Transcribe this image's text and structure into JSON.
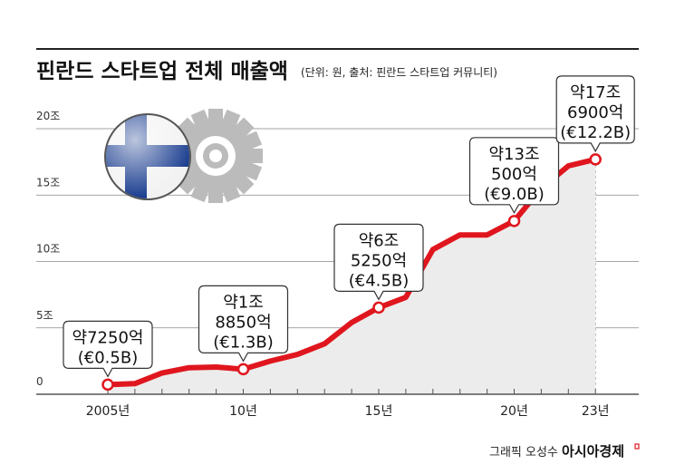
{
  "chart_data": {
    "type": "area",
    "title": "핀란드 스타트업 전체 매출액",
    "subtitle": "(단위: 원, 출처: 핀란드 스타트업 커뮤니티)",
    "x": [
      2005,
      2006,
      2007,
      2008,
      2009,
      2010,
      2011,
      2012,
      2013,
      2014,
      2015,
      2016,
      2017,
      2018,
      2019,
      2020,
      2021,
      2022,
      2023
    ],
    "values": [
      0.725,
      0.8,
      1.6,
      2.0,
      2.05,
      1.885,
      2.5,
      3.0,
      3.8,
      5.4,
      6.525,
      7.3,
      10.9,
      12.0,
      12.0,
      13.05,
      15.5,
      17.2,
      17.69
    ],
    "unit": "조 원",
    "ylim": [
      0,
      20
    ],
    "yticks": [
      {
        "v": 0,
        "label": "0"
      },
      {
        "v": 5,
        "label": "5조"
      },
      {
        "v": 10,
        "label": "10조"
      },
      {
        "v": 15,
        "label": "15조"
      },
      {
        "v": 20,
        "label": "20조"
      }
    ],
    "xticks": [
      {
        "v": 2005,
        "label": "2005년"
      },
      {
        "v": 2010,
        "label": "10년"
      },
      {
        "v": 2015,
        "label": "15년"
      },
      {
        "v": 2020,
        "label": "20년"
      },
      {
        "v": 2023,
        "label": "23년"
      }
    ],
    "grid": true,
    "annotations": [
      {
        "x": 2005,
        "lines": [
          "약7250억",
          "(€0.5B)"
        ]
      },
      {
        "x": 2010,
        "lines": [
          "약1조",
          "8850억",
          "(€1.3B)"
        ]
      },
      {
        "x": 2015,
        "lines": [
          "약6조",
          "5250억",
          "(€4.5B)"
        ]
      },
      {
        "x": 2020,
        "lines": [
          "약13조",
          "500억",
          "(€9.0B)"
        ]
      },
      {
        "x": 2023,
        "lines": [
          "약17조",
          "6900억",
          "(€12.2B)"
        ]
      }
    ],
    "colors": {
      "line": "#e0161e",
      "area": "#ececec",
      "axis": "#555555"
    }
  },
  "footer": {
    "credit": "그래픽 오성수",
    "brand": "아시아경제"
  }
}
